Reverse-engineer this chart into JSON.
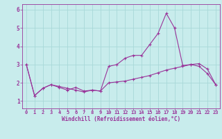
{
  "xlabel": "Windchill (Refroidissement éolien,°C)",
  "background_color": "#c8ecec",
  "grid_color": "#a8d8d8",
  "line_color": "#993399",
  "xlim": [
    -0.5,
    23.5
  ],
  "ylim": [
    0.6,
    6.3
  ],
  "yticks": [
    1,
    2,
    3,
    4,
    5,
    6
  ],
  "xticks": [
    0,
    1,
    2,
    3,
    4,
    5,
    6,
    7,
    8,
    9,
    10,
    11,
    12,
    13,
    14,
    15,
    16,
    17,
    18,
    19,
    20,
    21,
    22,
    23
  ],
  "series1_x": [
    0,
    1,
    2,
    3,
    4,
    5,
    6,
    7,
    8,
    9,
    10,
    11,
    12,
    13,
    14,
    15,
    16,
    17,
    18,
    19,
    20,
    21,
    22,
    23
  ],
  "series1_y": [
    3.0,
    1.3,
    1.7,
    1.9,
    1.8,
    1.7,
    1.6,
    1.5,
    1.6,
    1.55,
    2.9,
    3.0,
    3.35,
    3.5,
    3.5,
    4.1,
    4.7,
    5.8,
    5.0,
    2.95,
    3.0,
    3.05,
    2.75,
    1.9
  ],
  "series2_x": [
    0,
    1,
    2,
    3,
    4,
    5,
    6,
    7,
    8,
    9,
    10,
    11,
    12,
    13,
    14,
    15,
    16,
    17,
    18,
    19,
    20,
    21,
    22,
    23
  ],
  "series2_y": [
    3.0,
    1.3,
    1.7,
    1.9,
    1.75,
    1.6,
    1.75,
    1.55,
    1.6,
    1.55,
    2.0,
    2.05,
    2.1,
    2.2,
    2.3,
    2.4,
    2.55,
    2.7,
    2.8,
    2.9,
    3.0,
    2.9,
    2.5,
    1.9
  ],
  "tick_fontsize": 5,
  "xlabel_fontsize": 5.5,
  "marker_size": 3,
  "linewidth": 0.8
}
